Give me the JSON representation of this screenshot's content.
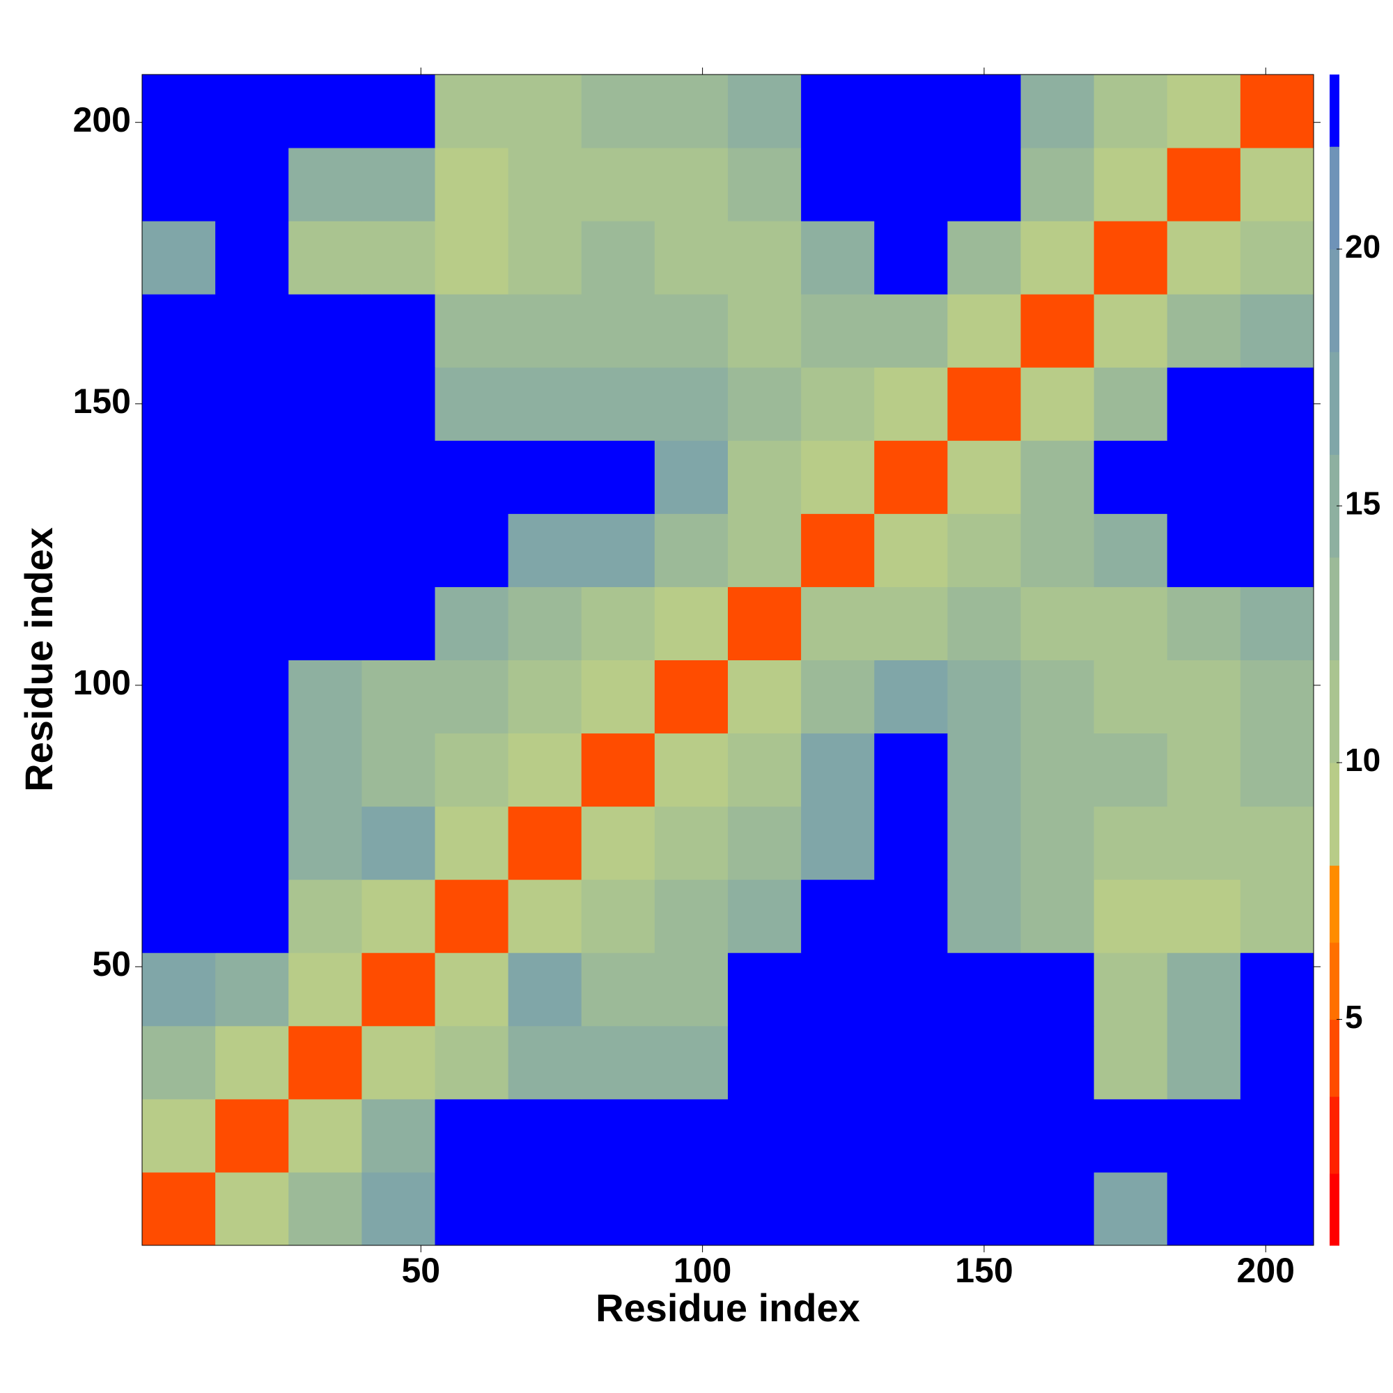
{
  "chart_data": {
    "type": "heatmap",
    "x_label": "Residue index",
    "y_label": "Residue index",
    "x": [
      7,
      20,
      33,
      46,
      59,
      72,
      85,
      98,
      111,
      124,
      137,
      150,
      163,
      176,
      189,
      202
    ],
    "y": [
      7,
      20,
      33,
      46,
      59,
      72,
      85,
      98,
      111,
      124,
      137,
      150,
      163,
      176,
      189,
      202
    ],
    "cell_size": 13,
    "z": [
      [
        4,
        10,
        14,
        18,
        23,
        23,
        23,
        23,
        23,
        23,
        23,
        23,
        23,
        18,
        23,
        23
      ],
      [
        10,
        4,
        10,
        16,
        23,
        23,
        23,
        23,
        23,
        23,
        23,
        23,
        23,
        23,
        23,
        23
      ],
      [
        14,
        10,
        4,
        10,
        12,
        16,
        15,
        16,
        23,
        23,
        23,
        23,
        23,
        11,
        16,
        23
      ],
      [
        18,
        16,
        10,
        4,
        10,
        18,
        14,
        14,
        23,
        23,
        23,
        23,
        23,
        12,
        15,
        23
      ],
      [
        23,
        23,
        12,
        10,
        4,
        10,
        12,
        14,
        16,
        23,
        23,
        15,
        13,
        10,
        9,
        12
      ],
      [
        23,
        23,
        16,
        18,
        10,
        4,
        10,
        11,
        13,
        18,
        23,
        16,
        14,
        12,
        11,
        11
      ],
      [
        23,
        23,
        15,
        14,
        12,
        10,
        4,
        10,
        12,
        17,
        23,
        16,
        14,
        14,
        12,
        13
      ],
      [
        23,
        23,
        16,
        14,
        14,
        11,
        10,
        4,
        10,
        14,
        17,
        15,
        13,
        11,
        12,
        14
      ],
      [
        23,
        23,
        23,
        23,
        16,
        13,
        12,
        10,
        4,
        11,
        12,
        13,
        11,
        12,
        14,
        16
      ],
      [
        23,
        23,
        23,
        23,
        23,
        18,
        17,
        14,
        11,
        4,
        10,
        12,
        13,
        16,
        23,
        23
      ],
      [
        23,
        23,
        23,
        23,
        23,
        23,
        23,
        17,
        12,
        10,
        4,
        10,
        14,
        23,
        23,
        23
      ],
      [
        23,
        23,
        23,
        23,
        15,
        16,
        16,
        15,
        13,
        12,
        10,
        4,
        10,
        14,
        23,
        23
      ],
      [
        23,
        23,
        23,
        23,
        13,
        14,
        14,
        13,
        11,
        13,
        14,
        10,
        4,
        10,
        13,
        15
      ],
      [
        18,
        23,
        11,
        12,
        10,
        12,
        14,
        11,
        12,
        16,
        23,
        14,
        10,
        4,
        10,
        12
      ],
      [
        23,
        23,
        16,
        15,
        9,
        11,
        12,
        12,
        14,
        23,
        23,
        23,
        13,
        10,
        4,
        10
      ],
      [
        23,
        23,
        23,
        23,
        12,
        11,
        13,
        14,
        16,
        23,
        23,
        23,
        15,
        12,
        10,
        4
      ]
    ],
    "xlim": [
      0.5,
      208.5
    ],
    "ylim": [
      0.5,
      208.5
    ],
    "xticks": [
      50,
      100,
      150,
      200
    ],
    "yticks": [
      50,
      100,
      150,
      200
    ],
    "colorbar": {
      "lim": [
        0.6,
        23.4
      ],
      "ticks": [
        5,
        10,
        15,
        20
      ],
      "bounds": [
        2,
        3.5,
        5,
        6.5,
        8,
        10,
        12,
        14,
        16,
        18,
        20,
        22
      ],
      "colors": [
        "#ff0000",
        "#ff2200",
        "#ff4c00",
        "#ff7000",
        "#ff8c00",
        "#b8cc88",
        "#aac490",
        "#9cba98",
        "#8eb0a0",
        "#80a6a8",
        "#789cb0",
        "#6f93b8",
        "#0000ff"
      ]
    }
  }
}
